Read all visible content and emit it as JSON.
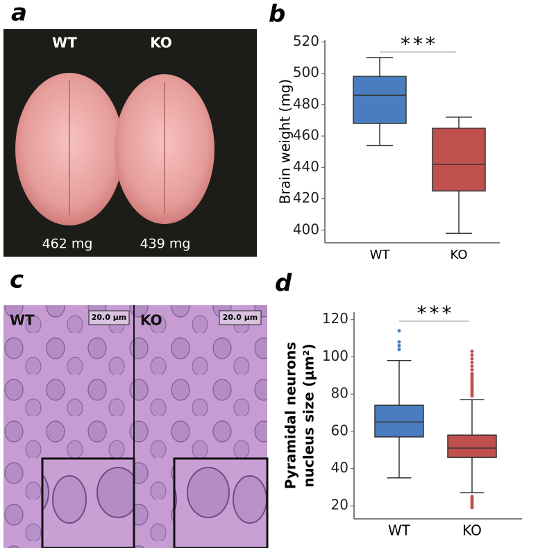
{
  "panel_labels": [
    "a",
    "b",
    "c",
    "d"
  ],
  "photo_a": {
    "labels": [
      "WT",
      "KO"
    ],
    "weights": [
      "462 mg",
      "439 mg"
    ]
  },
  "photo_c": {
    "labels": [
      "WT",
      "KO"
    ],
    "scale_bars": [
      "20.0 μm",
      "20.0 μm"
    ]
  },
  "chart_data": [
    {
      "type": "box",
      "ylabel": [
        "Brain weight (mg)"
      ],
      "annotation": "***",
      "categories": [
        "WT",
        "KO"
      ],
      "boxes": [
        {
          "color": "#4a7dbf",
          "whislo": 454,
          "q1": 468,
          "med": 486,
          "q3": 498,
          "whishi": 510,
          "fliers": []
        },
        {
          "color": "#c0504d",
          "whislo": 398,
          "q1": 425,
          "med": 442,
          "q3": 465,
          "whishi": 472,
          "fliers": []
        }
      ],
      "ylim": [
        392,
        521
      ],
      "yticks": [
        400,
        420,
        440,
        460,
        480,
        500,
        520
      ]
    },
    {
      "type": "box",
      "ylabel": [
        "Pyramidal neurons",
        "nucleus size (μm²)"
      ],
      "annotation": "***",
      "categories": [
        "WT",
        "KO"
      ],
      "boxes": [
        {
          "color": "#4a7dbf",
          "whislo": 35,
          "q1": 57,
          "med": 65,
          "q3": 74,
          "whishi": 98,
          "fliers": [
            104,
            106,
            108,
            114
          ]
        },
        {
          "color": "#c0504d",
          "whislo": 27,
          "q1": 46,
          "med": 51,
          "q3": 58,
          "whishi": 77,
          "fliers": [
            79,
            80,
            81,
            82,
            83,
            84,
            85,
            86,
            87,
            88,
            89,
            90,
            91,
            93,
            95,
            97,
            99,
            101,
            103,
            25,
            24,
            23,
            22,
            21,
            20,
            19
          ]
        }
      ],
      "ylim": [
        13,
        124
      ],
      "yticks": [
        20,
        40,
        60,
        80,
        100,
        120
      ]
    }
  ]
}
